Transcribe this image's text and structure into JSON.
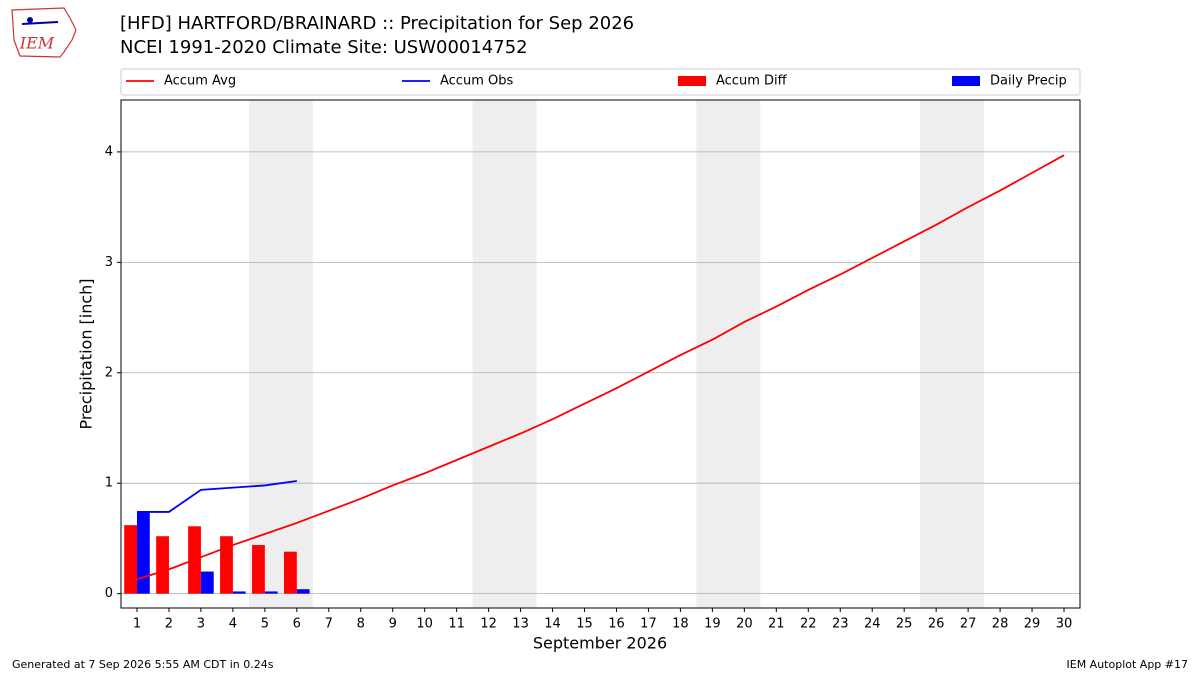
{
  "chart_data": {
    "type": "line",
    "title": "[HFD] HARTFORD/BRAINARD :: Precipitation for Sep 2026",
    "subtitle": "NCEI 1991-2020 Climate Site: USW00014752",
    "xlabel": "September 2026",
    "ylabel": "Precipitation [inch]",
    "logo": "IEM",
    "footer_left": "Generated at 7 Sep 2026 5:55 AM CDT in 0.24s",
    "footer_right": "IEM Autoplot App #17",
    "x": [
      1,
      2,
      3,
      4,
      5,
      6,
      7,
      8,
      9,
      10,
      11,
      12,
      13,
      14,
      15,
      16,
      17,
      18,
      19,
      20,
      21,
      22,
      23,
      24,
      25,
      26,
      27,
      28,
      29,
      30
    ],
    "xlim": [
      0.5,
      30.5
    ],
    "xticks": [
      1,
      2,
      3,
      4,
      5,
      6,
      7,
      8,
      9,
      10,
      11,
      12,
      13,
      14,
      15,
      16,
      17,
      18,
      19,
      20,
      21,
      22,
      23,
      24,
      25,
      26,
      27,
      28,
      29,
      30
    ],
    "ylim": [
      -0.13,
      4.47
    ],
    "yticks": [
      0,
      1,
      2,
      3,
      4
    ],
    "grid": true,
    "weekend_days": [
      5,
      6,
      12,
      13,
      19,
      20,
      26,
      27
    ],
    "series": [
      {
        "name": "Accum Avg",
        "type": "line",
        "color": "#ff0000",
        "values": [
          0.13,
          0.22,
          0.33,
          0.44,
          0.54,
          0.64,
          0.75,
          0.86,
          0.98,
          1.09,
          1.21,
          1.33,
          1.45,
          1.58,
          1.72,
          1.86,
          2.01,
          2.16,
          2.3,
          2.46,
          2.6,
          2.75,
          2.89,
          3.04,
          3.19,
          3.34,
          3.5,
          3.65,
          3.81,
          3.97
        ]
      },
      {
        "name": "Accum Obs",
        "type": "line",
        "color": "#0000ff",
        "values": [
          0.74,
          0.74,
          0.94,
          0.96,
          0.98,
          1.02,
          null,
          null,
          null,
          null,
          null,
          null,
          null,
          null,
          null,
          null,
          null,
          null,
          null,
          null,
          null,
          null,
          null,
          null,
          null,
          null,
          null,
          null,
          null,
          null
        ]
      },
      {
        "name": "Accum Diff",
        "type": "bar",
        "color": "#ff0000",
        "values": [
          0.62,
          0.52,
          0.61,
          0.52,
          0.44,
          0.38,
          null,
          null,
          null,
          null,
          null,
          null,
          null,
          null,
          null,
          null,
          null,
          null,
          null,
          null,
          null,
          null,
          null,
          null,
          null,
          null,
          null,
          null,
          null,
          null
        ]
      },
      {
        "name": "Daily Precip",
        "type": "bar",
        "color": "#0000ff",
        "values": [
          0.74,
          0,
          0.2,
          0.02,
          0.02,
          0.04,
          null,
          null,
          null,
          null,
          null,
          null,
          null,
          null,
          null,
          null,
          null,
          null,
          null,
          null,
          null,
          null,
          null,
          null,
          null,
          null,
          null,
          null,
          null,
          null
        ]
      }
    ]
  }
}
